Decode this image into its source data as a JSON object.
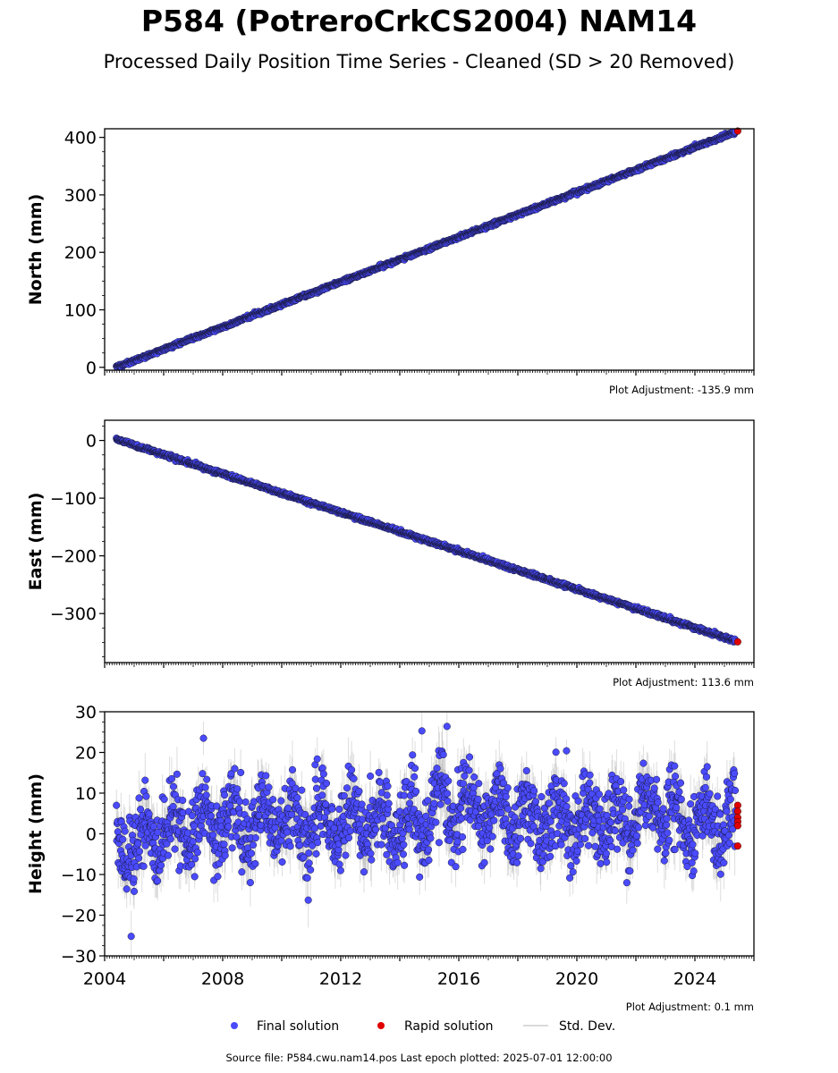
{
  "title": "P584 (PotreroCrkCS2004) NAM14",
  "subtitle": "Processed Daily Position Time Series - Cleaned (SD > 20 Removed)",
  "footer": "Source file: P584.cwu.nam14.pos  Last epoch plotted: 2025-07-01 12:00:00",
  "colors": {
    "final": "#4a4aff",
    "rapid": "#e00000",
    "stddev": "#9e9e9e",
    "edge": "#1a1a40"
  },
  "legend": {
    "final_label": "Final solution",
    "rapid_label": "Rapid solution",
    "stddev_label": "Std. Dev."
  },
  "chart_data": [
    {
      "type": "scatter",
      "ylabel": "North (mm)",
      "adjustment_text": "Plot Adjustment: -135.9 mm",
      "xlim": [
        2004.0,
        2026.0
      ],
      "ylim": [
        -5,
        415
      ],
      "yticks": [
        0,
        100,
        200,
        300,
        400
      ],
      "ytick_labels": [
        "0",
        "100",
        "200",
        "300",
        "400"
      ],
      "show_xtick_labels": false,
      "trend": {
        "start": [
          2004.4,
          0
        ],
        "end": [
          2025.4,
          410
        ]
      },
      "noise_mm": 1.5,
      "sd_mm": 1.5,
      "rapid_points": [
        {
          "x": 2025.45,
          "y": 411
        }
      ]
    },
    {
      "type": "scatter",
      "ylabel": "East (mm)",
      "adjustment_text": "Plot Adjustment: 113.6 mm",
      "xlim": [
        2004.0,
        2026.0
      ],
      "ylim": [
        -385,
        35
      ],
      "yticks": [
        0,
        -100,
        -200,
        -300
      ],
      "ytick_labels": [
        "0",
        "−100",
        "−200",
        "−300"
      ],
      "show_xtick_labels": false,
      "trend": {
        "start": [
          2004.4,
          2
        ],
        "end": [
          2025.4,
          -348
        ]
      },
      "noise_mm": 1.5,
      "sd_mm": 1.5,
      "rapid_points": [
        {
          "x": 2025.45,
          "y": -349
        }
      ]
    },
    {
      "type": "scatter",
      "ylabel": "Height (mm)",
      "adjustment_text": "Plot Adjustment: 0.1 mm",
      "xlim": [
        2004.0,
        2026.0
      ],
      "ylim": [
        -30,
        30
      ],
      "yticks": [
        -30,
        -20,
        -10,
        0,
        10,
        20,
        30
      ],
      "ytick_labels": [
        "−30",
        "−20",
        "−10",
        "0",
        "10",
        "20",
        "30"
      ],
      "show_xtick_labels": true,
      "xticks": [
        2004,
        2008,
        2012,
        2016,
        2020,
        2024
      ],
      "xtick_labels": [
        "2004",
        "2008",
        "2012",
        "2016",
        "2020",
        "2024"
      ],
      "seasonal": {
        "amplitude_mm": 5,
        "period_years": 1,
        "noise_mm": 4.5
      },
      "sd_mm": 4,
      "outliers": [
        {
          "x": 2007.35,
          "y": 23.5
        },
        {
          "x": 2014.75,
          "y": 25.3
        },
        {
          "x": 2015.6,
          "y": 26.4
        },
        {
          "x": 2004.9,
          "y": -25.2
        },
        {
          "x": 2010.9,
          "y": -16.3
        },
        {
          "x": 2019.65,
          "y": 20.4
        }
      ],
      "rapid_points": [
        {
          "x": 2025.45,
          "y": 7
        },
        {
          "x": 2025.45,
          "y": 5.5
        },
        {
          "x": 2025.45,
          "y": 4
        },
        {
          "x": 2025.45,
          "y": 3
        },
        {
          "x": 2025.45,
          "y": 2
        },
        {
          "x": 2025.45,
          "y": -3
        }
      ]
    }
  ]
}
